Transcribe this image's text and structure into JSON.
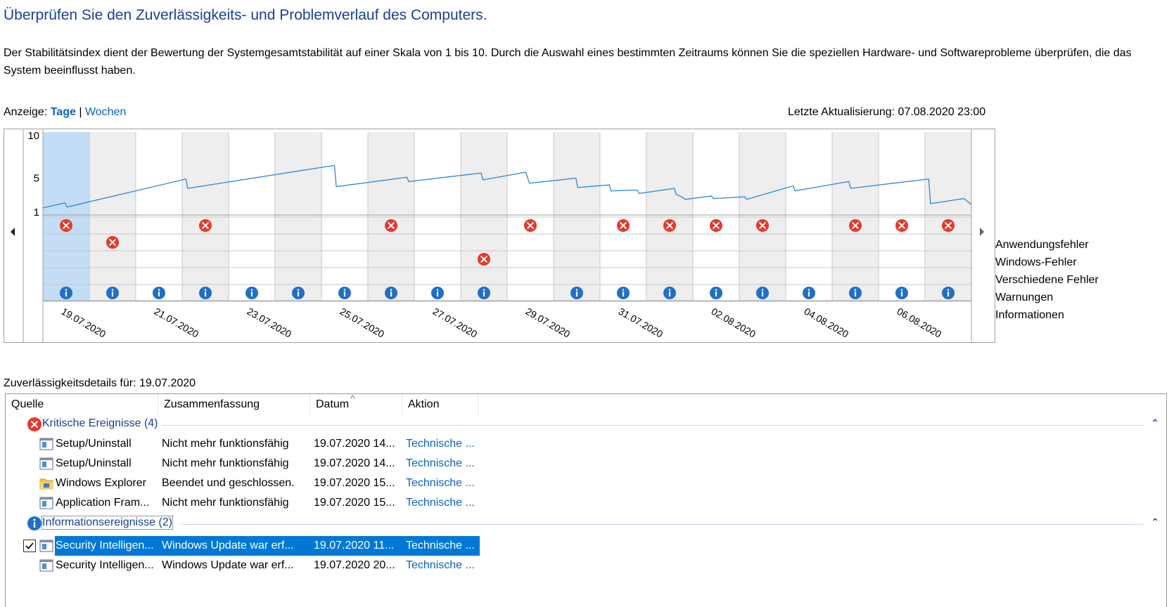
{
  "page": {
    "title": "Überprüfen Sie den Zuverlässigkeits- und Problemverlauf des Computers.",
    "description": "Der Stabilitätsindex dient der Bewertung der Systemgesamtstabilität auf einer Skala von 1 bis 10. Durch die Auswahl eines bestimmten Zeitraums können Sie die speziellen Hardware- und Softwareprobleme überprüfen, die das System beeinflusst haben."
  },
  "view": {
    "label": "Anzeige:",
    "days": "Tage",
    "separator": "|",
    "weeks": "Wochen",
    "last_update": "Letzte Aktualisierung: 07.08.2020 23:00"
  },
  "chart_data": {
    "type": "line",
    "y_ticks": [
      "10",
      "5",
      "1"
    ],
    "ylim": [
      1,
      10
    ],
    "dates": [
      "19.07.2020",
      "20.07.2020",
      "21.07.2020",
      "22.07.2020",
      "23.07.2020",
      "24.07.2020",
      "25.07.2020",
      "26.07.2020",
      "27.07.2020",
      "28.07.2020",
      "29.07.2020",
      "30.07.2020",
      "31.07.2020",
      "01.08.2020",
      "02.08.2020",
      "03.08.2020",
      "04.08.2020",
      "05.08.2020",
      "06.08.2020",
      "07.08.2020"
    ],
    "x_tick_labels": [
      "19.07.2020",
      "21.07.2020",
      "23.07.2020",
      "25.07.2020",
      "27.07.2020",
      "29.07.2020",
      "31.07.2020",
      "02.08.2020",
      "04.08.2020",
      "06.08.2020"
    ],
    "selected_date": "19.07.2020",
    "stability_index_points": [
      [
        0.0,
        1.5
      ],
      [
        0.6,
        2.1
      ],
      [
        0.65,
        1.6
      ],
      [
        3.85,
        4.9
      ],
      [
        3.9,
        3.8
      ],
      [
        7.85,
        6.5
      ],
      [
        7.9,
        4.0
      ],
      [
        9.8,
        5.1
      ],
      [
        9.85,
        4.6
      ],
      [
        11.8,
        5.6
      ],
      [
        11.85,
        4.8
      ],
      [
        13.0,
        5.7
      ],
      [
        13.1,
        4.4
      ],
      [
        14.35,
        5.0
      ],
      [
        14.4,
        3.9
      ],
      [
        15.25,
        4.2
      ],
      [
        15.3,
        3.5
      ],
      [
        16.0,
        3.6
      ],
      [
        16.05,
        3.2
      ],
      [
        17.0,
        3.8
      ],
      [
        17.05,
        3.1
      ],
      [
        17.2,
        2.8
      ],
      [
        17.3,
        2.5
      ],
      [
        18.0,
        2.9
      ],
      [
        18.05,
        2.6
      ],
      [
        18.9,
        2.8
      ],
      [
        18.95,
        2.5
      ],
      [
        20.2,
        4.1
      ],
      [
        20.25,
        3.5
      ],
      [
        21.7,
        4.6
      ],
      [
        21.75,
        3.8
      ],
      [
        23.85,
        4.9
      ],
      [
        23.9,
        2.0
      ],
      [
        24.8,
        2.6
      ],
      [
        25.0,
        1.9
      ]
    ],
    "event_rows": [
      "Anwendungsfehler",
      "Windows-Fehler",
      "Verschiedene Fehler",
      "Warnungen",
      "Informationen"
    ],
    "events": {
      "Anwendungsfehler": [
        0,
        3,
        7,
        10,
        12,
        13,
        14,
        15,
        17,
        18,
        19
      ],
      "Windows-Fehler": [
        1
      ],
      "Verschiedene Fehler": [
        9
      ],
      "Warnungen": [],
      "Informationen": [
        0,
        1,
        2,
        3,
        4,
        5,
        6,
        7,
        8,
        9,
        11,
        12,
        13,
        14,
        15,
        16,
        17,
        18,
        19
      ]
    }
  },
  "details": {
    "title": "Zuverlässigkeitsdetails für: 19.07.2020",
    "columns": [
      "Quelle",
      "Zusammenfassung",
      "Datum",
      "Aktion"
    ],
    "sort_indicator": "^",
    "groups": [
      {
        "label": "Kritische Ereignisse (4)",
        "icon": "error-icon",
        "collapse": "⌃",
        "rows": [
          {
            "icon": "app-window-icon",
            "source": "Setup/Uninstall",
            "summary": "Nicht mehr funktionsfähig",
            "date": "19.07.2020 14...",
            "action": "Technische ..."
          },
          {
            "icon": "app-window-icon",
            "source": "Setup/Uninstall",
            "summary": "Nicht mehr funktionsfähig",
            "date": "19.07.2020 14...",
            "action": "Technische ..."
          },
          {
            "icon": "folder-icon",
            "source": "Windows Explorer",
            "summary": "Beendet und geschlossen.",
            "date": "19.07.2020 15...",
            "action": "Technische ..."
          },
          {
            "icon": "app-window-icon",
            "source": "Application Fram...",
            "summary": "Nicht mehr funktionsfähig",
            "date": "19.07.2020 15...",
            "action": "Technische ..."
          }
        ]
      },
      {
        "label": "Informationsereignisse (2)",
        "icon": "info-icon",
        "collapse": "⌃",
        "rows": [
          {
            "icon": "app-window-icon",
            "source": "Security Intelligen...",
            "summary": "Windows Update war erf...",
            "date": "19.07.2020 11...",
            "action": "Technische ...",
            "selected": true,
            "checked": true
          },
          {
            "icon": "app-window-icon",
            "source": "Security Intelligen...",
            "summary": "Windows Update war erf...",
            "date": "19.07.2020 20...",
            "action": "Technische ..."
          }
        ]
      }
    ]
  }
}
